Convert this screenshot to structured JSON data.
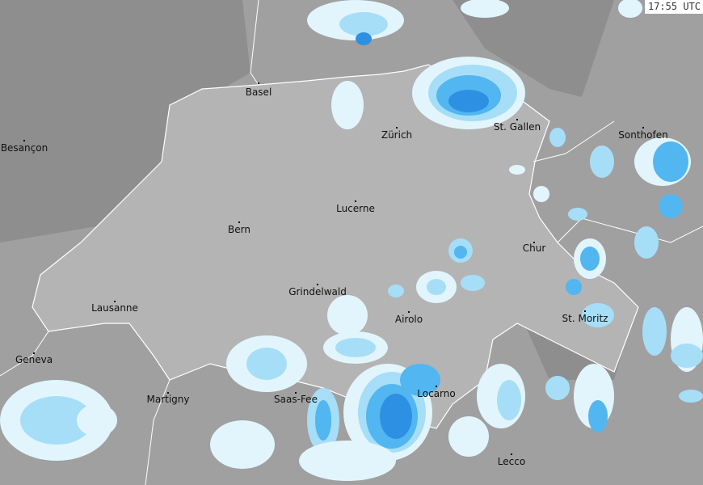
{
  "timestamp": "17:55 UTC",
  "colors": {
    "background": "#a0a0a0",
    "dark_terrain": "#8e8e8e",
    "switzerland": "#b4b4b4",
    "border": "#ffffff",
    "precip_levels": [
      "#e2f5fd",
      "#a6def8",
      "#52b6f0",
      "#2e90e2",
      "#1c78d0"
    ]
  },
  "cities": [
    {
      "name": "Basel"
    },
    {
      "name": "Zürich"
    },
    {
      "name": "St. Gallen"
    },
    {
      "name": "Besançon"
    },
    {
      "name": "Sonthofen"
    },
    {
      "name": "Lucerne"
    },
    {
      "name": "Bern"
    },
    {
      "name": "Chur"
    },
    {
      "name": "Grindelwald"
    },
    {
      "name": "Lausanne"
    },
    {
      "name": "Airolo"
    },
    {
      "name": "St. Moritz"
    },
    {
      "name": "Geneva"
    },
    {
      "name": "Martigny"
    },
    {
      "name": "Saas-Fee"
    },
    {
      "name": "Locarno"
    },
    {
      "name": "Lecco"
    }
  ]
}
